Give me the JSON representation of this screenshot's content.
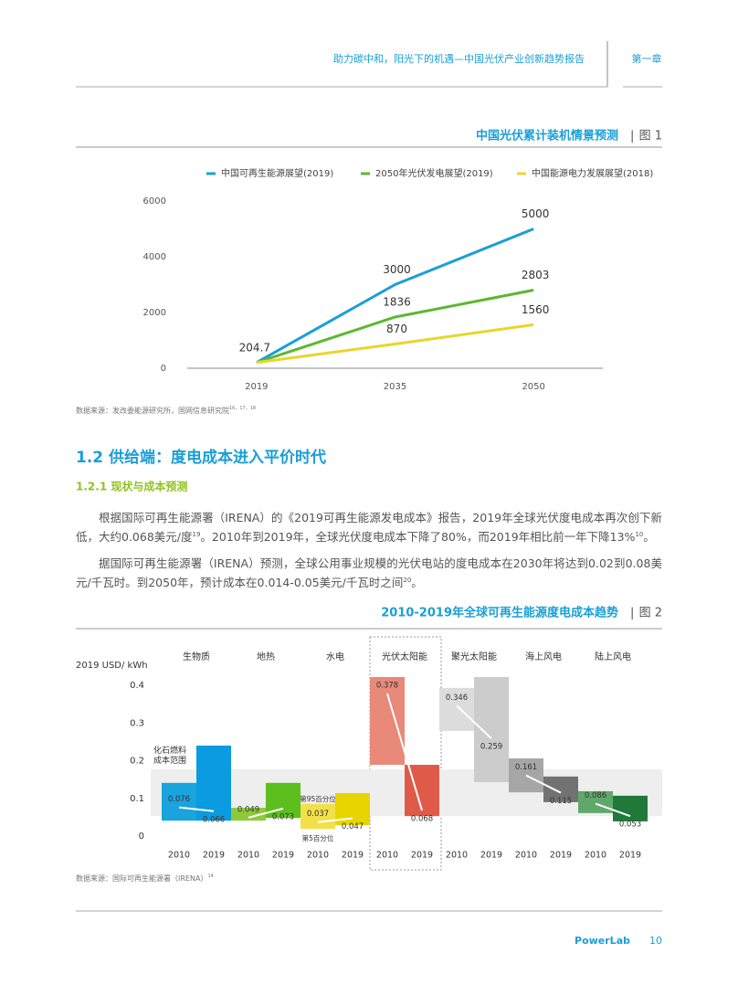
{
  "header": {
    "title": "助力碳中和，阳光下的机遇—中国光伏产业创新趋势报告",
    "chapter": "第一章"
  },
  "chart_data": [
    {
      "type": "line",
      "title": "中国光伏累计装机情景预测",
      "figure": "图 1",
      "categories": [
        "2019",
        "2035",
        "2050"
      ],
      "series": [
        {
          "name": "中国可再生能源展望(2019)",
          "color": "#1a9fd6",
          "values": [
            204.7,
            3000,
            5000
          ]
        },
        {
          "name": "2050年光伏发电展望(2019)",
          "color": "#5cb82e",
          "values": [
            204.7,
            1836,
            2803
          ]
        },
        {
          "name": "中国能源电力发展展望(2018)",
          "color": "#e8d62a",
          "values": [
            204.7,
            870,
            1560
          ]
        }
      ],
      "ylim": [
        0,
        6000
      ],
      "yticks": [
        0,
        2000,
        4000,
        6000
      ],
      "source": "数据来源：发改委能源研究所，国网信息研究院",
      "source_note": "16，17，18"
    },
    {
      "type": "range_bar",
      "title": "2010-2019年全球可再生能源度电成本趋势",
      "figure": "图 2",
      "y_label": "2019 USD/ kWh",
      "periods": [
        "2010",
        "2019"
      ],
      "groups": [
        {
          "name": "生物质",
          "bars": [
            {
              "low": 0.041,
              "high": 0.141,
              "value": 0.076,
              "color": "#1aa3dc"
            },
            {
              "low": 0.041,
              "high": 0.24,
              "value": 0.066,
              "color": "#0a9be0"
            }
          ]
        },
        {
          "name": "地热",
          "bars": [
            {
              "low": 0.041,
              "high": 0.075,
              "value": 0.049,
              "color": "#8fc93a"
            },
            {
              "low": 0.048,
              "high": 0.141,
              "value": 0.073,
              "color": "#5cbf1e"
            }
          ]
        },
        {
          "name": "水电",
          "bars": [
            {
              "low": 0.019,
              "high": 0.085,
              "value": 0.037,
              "color": "#f2e04a"
            },
            {
              "low": 0.029,
              "high": 0.114,
              "value": 0.047,
              "color": "#e8d500"
            }
          ]
        },
        {
          "name": "光伏太阳能",
          "bars": [
            {
              "low": 0.189,
              "high": 0.422,
              "value": 0.378,
              "color": "#e8897a"
            },
            {
              "low": 0.053,
              "high": 0.189,
              "value": 0.068,
              "color": "#e05a4a"
            }
          ]
        },
        {
          "name": "聚光太阳能",
          "bars": [
            {
              "low": 0.279,
              "high": 0.393,
              "value": 0.346,
              "color": "#dcdcdc"
            },
            {
              "low": 0.143,
              "high": 0.422,
              "value": 0.259,
              "color": "#cccccc"
            }
          ]
        },
        {
          "name": "海上风电",
          "bars": [
            {
              "low": 0.116,
              "high": 0.206,
              "value": 0.161,
              "color": "#a6a6a6"
            },
            {
              "low": 0.09,
              "high": 0.158,
              "value": 0.115,
              "color": "#727272"
            }
          ]
        },
        {
          "name": "陆上风电",
          "bars": [
            {
              "low": 0.061,
              "high": 0.119,
              "value": 0.086,
              "color": "#5fa86a"
            },
            {
              "low": 0.039,
              "high": 0.107,
              "value": 0.053,
              "color": "#1f7a3a"
            }
          ]
        }
      ],
      "band": {
        "label": "化石燃料成本范围",
        "range": [
          0.053,
          0.177
        ]
      },
      "annotations": [
        "第95百分位",
        "第5百分位"
      ],
      "ylim": [
        0,
        0.45
      ],
      "yticks": [
        0,
        0.1,
        0.2,
        0.3,
        0.4
      ],
      "source": "数据来源：国际可再生能源署（IRENA）",
      "source_note": "14"
    }
  ],
  "section": {
    "heading": "1.2 供给端：度电成本进入平价时代",
    "subheading": "1.2.1 现状与成本预测",
    "paragraphs": [
      [
        {
          "text": "根据国际可再生能源署（IRENA）的《2019可再生能源发电成本》报告，2019年全球光伏度电成本再次创下新低，大约0.068美元/度"
        },
        {
          "sup": "19"
        },
        {
          "text": "。2010年到2019年，全球光伏度电成本下降了80%，而2019年相比前一年下降13%"
        },
        {
          "sup": "10"
        },
        {
          "text": "。"
        }
      ],
      [
        {
          "text": "据国际可再生能源署（IRENA）预测，全球公用事业规模的光伏电站的度电成本在2030年将达到0.02到0.08美元/千瓦时。到2050年，预计成本在0.014-0.05美元/千瓦时之间"
        },
        {
          "sup": "20"
        },
        {
          "text": "。"
        }
      ]
    ]
  },
  "footer": {
    "brand": "PowerLab",
    "page": "10"
  }
}
